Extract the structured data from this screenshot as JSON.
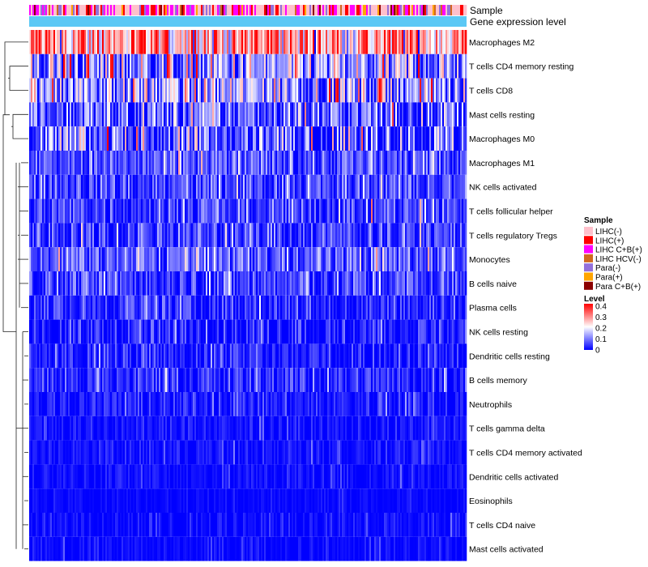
{
  "chart_data": {
    "type": "heatmap",
    "title": "",
    "xlabel": "",
    "ylabel": "",
    "annotation_tracks": [
      "Sample",
      "Gene expression level"
    ],
    "rows": [
      {
        "name": "Macrophages M2",
        "mean": 0.27,
        "spread": 0.1
      },
      {
        "name": "T cells CD4 memory resting",
        "mean": 0.11,
        "spread": 0.1
      },
      {
        "name": "T cells CD8",
        "mean": 0.13,
        "spread": 0.09
      },
      {
        "name": "Mast cells resting",
        "mean": 0.07,
        "spread": 0.08
      },
      {
        "name": "Macrophages M0",
        "mean": 0.07,
        "spread": 0.09
      },
      {
        "name": "Macrophages M1",
        "mean": 0.06,
        "spread": 0.05
      },
      {
        "name": "NK cells activated",
        "mean": 0.05,
        "spread": 0.05
      },
      {
        "name": "T cells follicular helper",
        "mean": 0.05,
        "spread": 0.05
      },
      {
        "name": "T cells regulatory  Tregs",
        "mean": 0.05,
        "spread": 0.05
      },
      {
        "name": "Monocytes",
        "mean": 0.07,
        "spread": 0.05
      },
      {
        "name": "B cells naive",
        "mean": 0.05,
        "spread": 0.05
      },
      {
        "name": "Plasma cells",
        "mean": 0.03,
        "spread": 0.04
      },
      {
        "name": "NK cells resting",
        "mean": 0.02,
        "spread": 0.04
      },
      {
        "name": "Dendritic cells resting",
        "mean": 0.02,
        "spread": 0.04
      },
      {
        "name": "B cells memory",
        "mean": 0.03,
        "spread": 0.04
      },
      {
        "name": "Neutrophils",
        "mean": 0.02,
        "spread": 0.03
      },
      {
        "name": "T cells gamma delta",
        "mean": 0.01,
        "spread": 0.02
      },
      {
        "name": "T cells CD4 memory activated",
        "mean": 0.01,
        "spread": 0.02
      },
      {
        "name": "Dendritic cells activated",
        "mean": 0.01,
        "spread": 0.02
      },
      {
        "name": "Eosinophils",
        "mean": 0.005,
        "spread": 0.01
      },
      {
        "name": "T cells CD4 naive",
        "mean": 0.008,
        "spread": 0.02
      },
      {
        "name": "Mast cells activated",
        "mean": 0.006,
        "spread": 0.015
      }
    ],
    "n_samples": 270,
    "legend": {
      "position": "right",
      "sample": {
        "title": "Sample",
        "items": [
          {
            "label": "LIHC(-)",
            "color": "#ffc0cb"
          },
          {
            "label": "LIHC(+)",
            "color": "#ff0000"
          },
          {
            "label": "LIHC C+B(+)",
            "color": "#ff00ff"
          },
          {
            "label": "LIHC HCV(-)",
            "color": "#d2691e"
          },
          {
            "label": "Para(-)",
            "color": "#9370db"
          },
          {
            "label": "Para(+)",
            "color": "#ffa500"
          },
          {
            "label": "Para C+B(+)",
            "color": "#8b0000"
          }
        ]
      },
      "level": {
        "title": "Level",
        "ticks": [
          "0.4",
          "0.3",
          "0.2",
          "0.1",
          "0"
        ],
        "range": [
          0,
          0.4
        ],
        "colors": [
          "#0000ff",
          "#ffffff",
          "#ff0000"
        ]
      }
    },
    "gene_expression_track_color": "#5bc8f5"
  }
}
